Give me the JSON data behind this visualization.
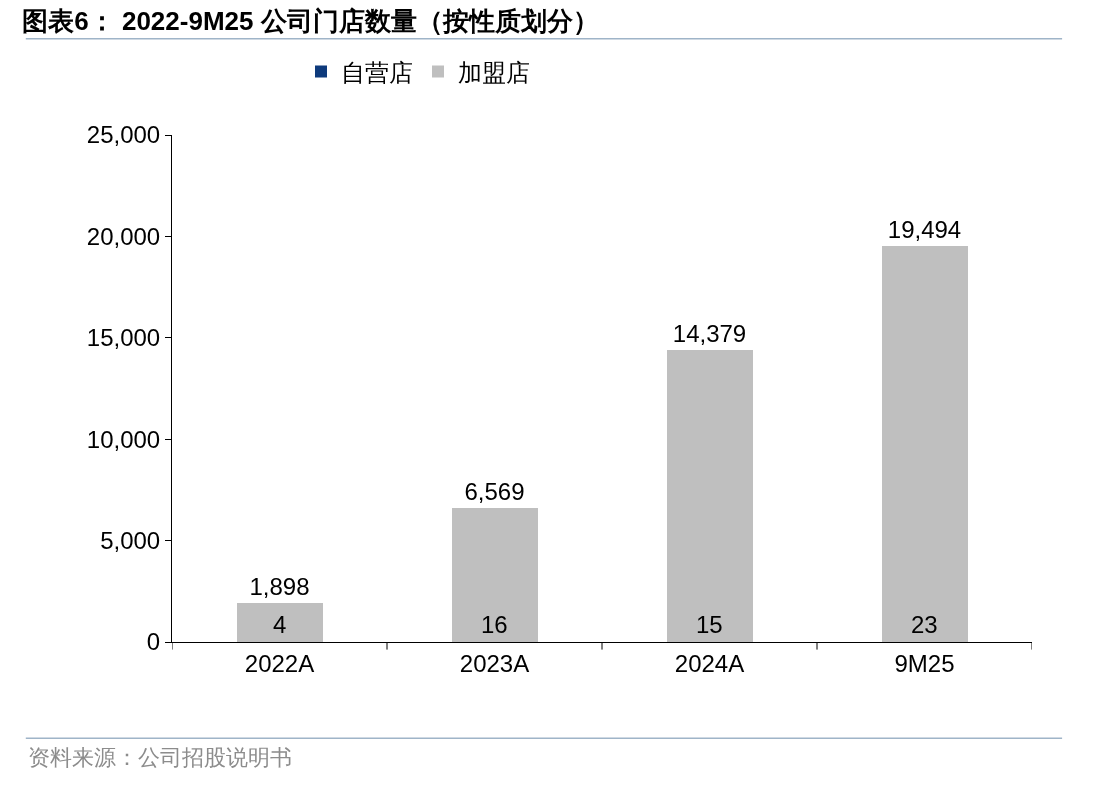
{
  "chart_data": {
    "type": "bar",
    "title": "图表6： 2022-9M25 公司门店数量（按性质划分）",
    "categories": [
      "2022A",
      "2023A",
      "2024A",
      "9M25"
    ],
    "stacked": true,
    "series": [
      {
        "name": "自营店",
        "color": "#0e3a7c",
        "values": [
          4,
          16,
          15,
          23
        ],
        "value_labels": [
          "4",
          "16",
          "15",
          "23"
        ]
      },
      {
        "name": "加盟店",
        "color": "#bfbfbf",
        "values": [
          1898,
          6569,
          14379,
          19494
        ],
        "value_labels": [
          "1,898",
          "6,569",
          "14,379",
          "19,494"
        ]
      }
    ],
    "ylim": [
      0,
      25000
    ],
    "yticks": [
      {
        "value": 0,
        "label": "0"
      },
      {
        "value": 5000,
        "label": "5,000"
      },
      {
        "value": 10000,
        "label": "10,000"
      },
      {
        "value": 15000,
        "label": "15,000"
      },
      {
        "value": 20000,
        "label": "20,000"
      },
      {
        "value": 25000,
        "label": "25,000"
      }
    ],
    "grid": false,
    "legend": "top",
    "annotations": [
      "资料来源：公司招股说明书"
    ]
  }
}
